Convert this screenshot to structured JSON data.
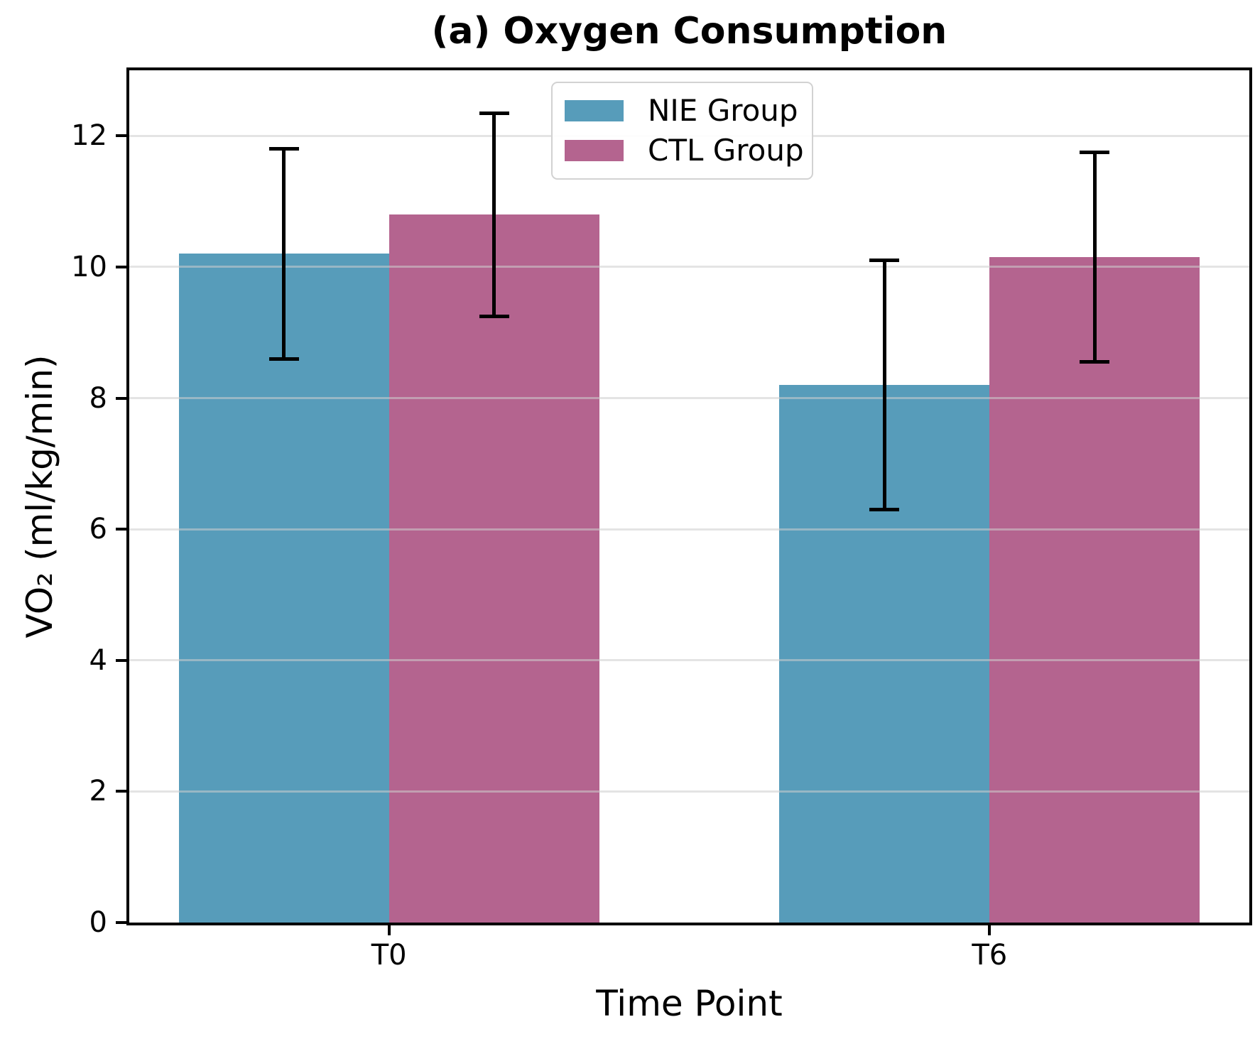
{
  "title": "(a) Oxygen Consumption",
  "axes": {
    "xlabel": "Time Point",
    "ylabel": "VO₂ (ml/kg/min)",
    "ytick_labels": [
      "0",
      "2",
      "4",
      "6",
      "8",
      "10",
      "12"
    ],
    "xtick_labels": [
      "T0",
      "T6"
    ]
  },
  "legend": {
    "entries": [
      "NIE Group",
      "CTL Group"
    ]
  },
  "chart_data": {
    "type": "bar",
    "title": "(a) Oxygen Consumption",
    "xlabel": "Time Point",
    "ylabel": "VO₂ (ml/kg/min)",
    "categories": [
      "T0",
      "T6"
    ],
    "x": [
      0,
      1
    ],
    "series": [
      {
        "name": "NIE Group",
        "color": "#579CBA",
        "values": [
          10.2,
          8.2
        ],
        "errors": [
          1.6,
          1.9
        ]
      },
      {
        "name": "CTL Group",
        "color": "#B4648F",
        "values": [
          10.8,
          10.15
        ],
        "errors": [
          1.55,
          1.6
        ]
      }
    ],
    "error_bars": {
      "NIE Group": {
        "T0": [
          8.6,
          11.8
        ],
        "T6": [
          6.3,
          10.1
        ]
      },
      "CTL Group": {
        "T0": [
          9.25,
          12.35
        ],
        "T6": [
          8.55,
          11.75
        ]
      }
    },
    "bar_width": 0.35,
    "ylim": [
      0,
      13
    ],
    "xlim": [
      -0.4325,
      1.4325
    ],
    "yticks": [
      0,
      2,
      4,
      6,
      8,
      10,
      12
    ],
    "grid": "horizontal, light gray, drawn over bars",
    "legend_position": "upper center-right, framed"
  }
}
